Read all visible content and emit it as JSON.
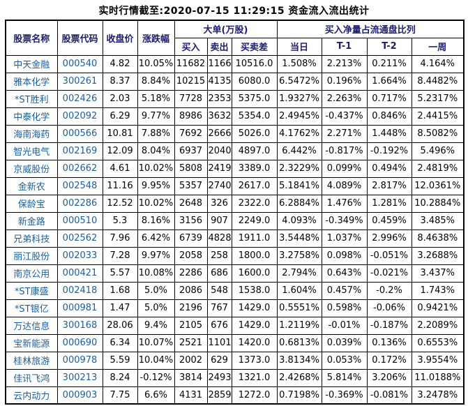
{
  "title": "实时行情截至:2020-07-15 11:29:15 资金流入流出统计",
  "colors": {
    "header_text": "#1c1c6e",
    "link_text": "#1b5e9c",
    "data_text": "#000000",
    "border": "#000000",
    "background": "#ffffff"
  },
  "header": {
    "stock_name": "股票名称",
    "stock_code": "股票代码",
    "close_price": "收盘价",
    "change_pct": "涨跌幅",
    "big_orders_group": "大单(万股)",
    "buy": "买入",
    "sell": "卖出",
    "buy_sell_diff": "买卖差",
    "net_buy_ratio_group": "买入净量占流通盘比列",
    "today": "当日",
    "t_minus_1": "T-1",
    "t_minus_2": "T-2",
    "one_week": "一周"
  },
  "rows": [
    {
      "name": "中天金融",
      "code": "000540",
      "close": "4.82",
      "change": "10.05%",
      "buy": "11682",
      "sell": "1166",
      "diff": "10516.0",
      "today": "1.508%",
      "t1": "2.213%",
      "t2": "0.211%",
      "week": "4.164%"
    },
    {
      "name": "雅本化学",
      "code": "300261",
      "close": "8.37",
      "change": "8.84%",
      "buy": "10215",
      "sell": "4135",
      "diff": "6080.0",
      "today": "6.5472%",
      "t1": "0.196%",
      "t2": "1.664%",
      "week": "8.4482%"
    },
    {
      "name": "*ST胜利",
      "code": "002426",
      "close": "2.03",
      "change": "5.18%",
      "buy": "7728",
      "sell": "2353",
      "diff": "5375.0",
      "today": "1.9327%",
      "t1": "2.263%",
      "t2": "0.717%",
      "week": "5.2317%"
    },
    {
      "name": "中泰化学",
      "code": "002092",
      "close": "6.29",
      "change": "9.77%",
      "buy": "8986",
      "sell": "3632",
      "diff": "5354.0",
      "today": "2.4945%",
      "t1": "-0.437%",
      "t2": "0.846%",
      "week": "2.4415%"
    },
    {
      "name": "海南海药",
      "code": "000566",
      "close": "10.81",
      "change": "7.88%",
      "buy": "7692",
      "sell": "2666",
      "diff": "5026.0",
      "today": "4.1762%",
      "t1": "2.271%",
      "t2": "1.448%",
      "week": "8.5082%"
    },
    {
      "name": "智光电气",
      "code": "002169",
      "close": "12.09",
      "change": "8.04%",
      "buy": "6937",
      "sell": "2040",
      "diff": "4897.0",
      "today": "6.442%",
      "t1": "-0.817%",
      "t2": "-0.192%",
      "week": "5.496%"
    },
    {
      "name": "京威股份",
      "code": "002662",
      "close": "4.61",
      "change": "10.02%",
      "buy": "5808",
      "sell": "2419",
      "diff": "3389.0",
      "today": "2.3229%",
      "t1": "0.099%",
      "t2": "0.494%",
      "week": "2.4819%"
    },
    {
      "name": "金新农",
      "code": "002548",
      "close": "11.16",
      "change": "9.95%",
      "buy": "5357",
      "sell": "2740",
      "diff": "2617.0",
      "today": "5.1841%",
      "t1": "4.089%",
      "t2": "2.817%",
      "week": "12.0361%"
    },
    {
      "name": "保龄宝",
      "code": "002286",
      "close": "12.52",
      "change": "10.02%",
      "buy": "2648",
      "sell": "326",
      "diff": "2322.0",
      "today": "6.2884%",
      "t1": "1.476%",
      "t2": "1.281%",
      "week": "10.2884%"
    },
    {
      "name": "新金路",
      "code": "000510",
      "close": "5.3",
      "change": "8.16%",
      "buy": "3156",
      "sell": "907",
      "diff": "2249.0",
      "today": "4.093%",
      "t1": "-0.349%",
      "t2": "0.459%",
      "week": "3.485%"
    },
    {
      "name": "兄弟科技",
      "code": "002562",
      "close": "7.96",
      "change": "6.42%",
      "buy": "6739",
      "sell": "4828",
      "diff": "1911.0",
      "today": "3.5448%",
      "t1": "1.037%",
      "t2": "2.996%",
      "week": "8.4638%"
    },
    {
      "name": "丽江股份",
      "code": "002033",
      "close": "7.28",
      "change": "9.97%",
      "buy": "2058",
      "sell": "258",
      "diff": "1800.0",
      "today": "3.2758%",
      "t1": "0.098%",
      "t2": "-0.051%",
      "week": "3.2688%"
    },
    {
      "name": "南京公用",
      "code": "000421",
      "close": "5.57",
      "change": "10.08%",
      "buy": "2286",
      "sell": "686",
      "diff": "1600.0",
      "today": "2.794%",
      "t1": "0.643%",
      "t2": "-0.021%",
      "week": "3.437%"
    },
    {
      "name": "*ST康盛",
      "code": "002418",
      "close": "1.68",
      "change": "5.0%",
      "buy": "2086",
      "sell": "548",
      "diff": "1538.0",
      "today": "1.604%",
      "t1": "0.457%",
      "t2": "-0.2%",
      "week": "1.743%"
    },
    {
      "name": "*ST银亿",
      "code": "000981",
      "close": "1.47",
      "change": "5.0%",
      "buy": "2196",
      "sell": "767",
      "diff": "1429.0",
      "today": "0.5551%",
      "t1": "0.598%",
      "t2": "-0.06%",
      "week": "0.9421%"
    },
    {
      "name": "万达信息",
      "code": "300168",
      "close": "28.06",
      "change": "9.4%",
      "buy": "2105",
      "sell": "676",
      "diff": "1429.0",
      "today": "1.2119%",
      "t1": "-0.01%",
      "t2": "-0.187%",
      "week": "2.2089%"
    },
    {
      "name": "宝新能源",
      "code": "000690",
      "close": "6.34",
      "change": "10.07%",
      "buy": "2521",
      "sell": "1101",
      "diff": "1420.0",
      "today": "0.6813%",
      "t1": "0.039%",
      "t2": "0.136%",
      "week": "0.6553%"
    },
    {
      "name": "桂林旅游",
      "code": "000978",
      "close": "5.59",
      "change": "10.04%",
      "buy": "2002",
      "sell": "629",
      "diff": "1373.0",
      "today": "3.8134%",
      "t1": "0.053%",
      "t2": "0.172%",
      "week": "3.9554%"
    },
    {
      "name": "佳讯飞鸿",
      "code": "300213",
      "close": "8.24",
      "change": "-0.12%",
      "buy": "3814",
      "sell": "2493",
      "diff": "1321.0",
      "today": "2.4268%",
      "t1": "5.814%",
      "t2": "3.206%",
      "week": "11.0188%"
    },
    {
      "name": "云内动力",
      "code": "000903",
      "close": "7.75",
      "change": "6.6%",
      "buy": "4131",
      "sell": "2859",
      "diff": "1272.0",
      "today": "0.7198%",
      "t1": "-0.369%",
      "t2": "-0.081%",
      "week": "3.2478%"
    }
  ]
}
